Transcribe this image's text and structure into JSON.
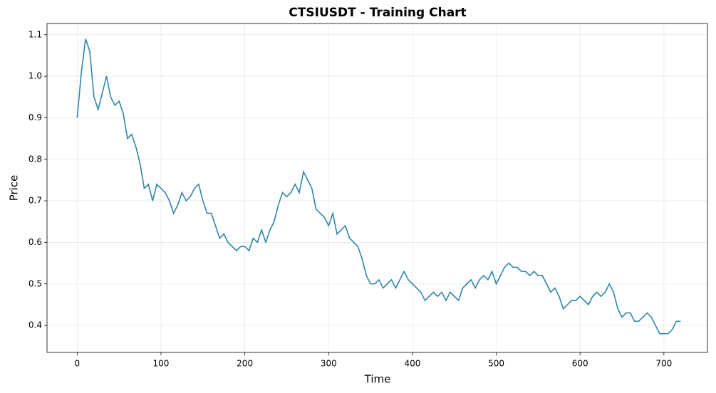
{
  "chart_data": {
    "type": "line",
    "title": "CTSIUSDT - Training Chart",
    "x_label": "Time",
    "y_label": "Price",
    "x": [
      0,
      5,
      10,
      15,
      20,
      25,
      30,
      35,
      40,
      45,
      50,
      55,
      60,
      65,
      70,
      75,
      80,
      85,
      90,
      95,
      100,
      105,
      110,
      115,
      120,
      125,
      130,
      135,
      140,
      145,
      150,
      155,
      160,
      165,
      170,
      175,
      180,
      185,
      190,
      195,
      200,
      205,
      210,
      215,
      220,
      225,
      230,
      235,
      240,
      245,
      250,
      255,
      260,
      265,
      270,
      275,
      280,
      285,
      290,
      295,
      300,
      305,
      310,
      315,
      320,
      325,
      330,
      335,
      340,
      345,
      350,
      355,
      360,
      365,
      370,
      375,
      380,
      385,
      390,
      395,
      400,
      405,
      410,
      415,
      420,
      425,
      430,
      435,
      440,
      445,
      450,
      455,
      460,
      465,
      470,
      475,
      480,
      485,
      490,
      495,
      500,
      505,
      510,
      515,
      520,
      525,
      530,
      535,
      540,
      545,
      550,
      555,
      560,
      565,
      570,
      575,
      580,
      585,
      590,
      595,
      600,
      605,
      610,
      615,
      620,
      625,
      630,
      635,
      640,
      645,
      650,
      655,
      660,
      665,
      670,
      675,
      680,
      685,
      690,
      695,
      700,
      705,
      710,
      715,
      720
    ],
    "series": [
      {
        "color": "#2e86ab",
        "values": [
          0.9,
          1.01,
          1.09,
          1.06,
          0.95,
          0.92,
          0.96,
          1.0,
          0.95,
          0.93,
          0.94,
          0.91,
          0.85,
          0.86,
          0.83,
          0.79,
          0.73,
          0.74,
          0.7,
          0.74,
          0.73,
          0.72,
          0.7,
          0.67,
          0.69,
          0.72,
          0.7,
          0.71,
          0.73,
          0.74,
          0.7,
          0.67,
          0.67,
          0.64,
          0.61,
          0.62,
          0.6,
          0.59,
          0.58,
          0.59,
          0.59,
          0.58,
          0.61,
          0.6,
          0.63,
          0.6,
          0.63,
          0.65,
          0.69,
          0.72,
          0.71,
          0.72,
          0.74,
          0.72,
          0.77,
          0.75,
          0.73,
          0.68,
          0.67,
          0.66,
          0.64,
          0.67,
          0.62,
          0.63,
          0.64,
          0.61,
          0.6,
          0.59,
          0.56,
          0.52,
          0.5,
          0.5,
          0.51,
          0.49,
          0.5,
          0.51,
          0.49,
          0.51,
          0.53,
          0.51,
          0.5,
          0.49,
          0.48,
          0.46,
          0.47,
          0.48,
          0.47,
          0.48,
          0.46,
          0.48,
          0.47,
          0.46,
          0.49,
          0.5,
          0.51,
          0.49,
          0.51,
          0.52,
          0.51,
          0.53,
          0.5,
          0.52,
          0.54,
          0.55,
          0.54,
          0.54,
          0.53,
          0.53,
          0.52,
          0.53,
          0.52,
          0.52,
          0.5,
          0.48,
          0.49,
          0.47,
          0.44,
          0.45,
          0.46,
          0.46,
          0.47,
          0.46,
          0.45,
          0.47,
          0.48,
          0.47,
          0.48,
          0.5,
          0.48,
          0.44,
          0.42,
          0.43,
          0.43,
          0.41,
          0.41,
          0.42,
          0.43,
          0.42,
          0.4,
          0.38,
          0.38,
          0.38,
          0.39,
          0.41,
          0.41
        ]
      }
    ],
    "xlim": [
      -36,
      752
    ],
    "xticks": [
      0,
      100,
      200,
      300,
      400,
      500,
      600,
      700
    ],
    "ylim": [
      0.335,
      1.127
    ],
    "yticks": [
      0.4,
      0.5,
      0.6,
      0.7,
      0.8,
      0.9,
      {
        "value": 1,
        "label": "1.0"
      },
      1.1
    ],
    "grid": true
  }
}
